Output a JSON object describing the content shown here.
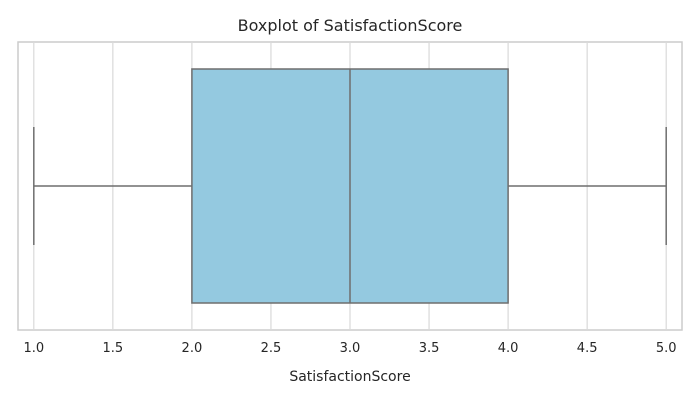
{
  "chart_data": {
    "type": "boxplot",
    "title": "Boxplot of SatisfactionScore",
    "xlabel": "SatisfactionScore",
    "ylabel": "",
    "orientation": "horizontal",
    "xlim": [
      0.9,
      5.1
    ],
    "xticks": [
      1.0,
      1.5,
      2.0,
      2.5,
      3.0,
      3.5,
      4.0,
      4.5,
      5.0
    ],
    "xtick_labels": [
      "1.0",
      "1.5",
      "2.0",
      "2.5",
      "3.0",
      "3.5",
      "4.0",
      "4.5",
      "5.0"
    ],
    "grid": true,
    "series": [
      {
        "min": 1.0,
        "q1": 2.0,
        "median": 3.0,
        "q3": 4.0,
        "max": 5.0,
        "color": "#94c9e0"
      }
    ],
    "colors": {
      "box_fill": "#94c9e0",
      "box_edge": "#6e6e6e",
      "grid": "#d9d9d9",
      "frame": "#cccccc",
      "text": "#262626"
    }
  }
}
